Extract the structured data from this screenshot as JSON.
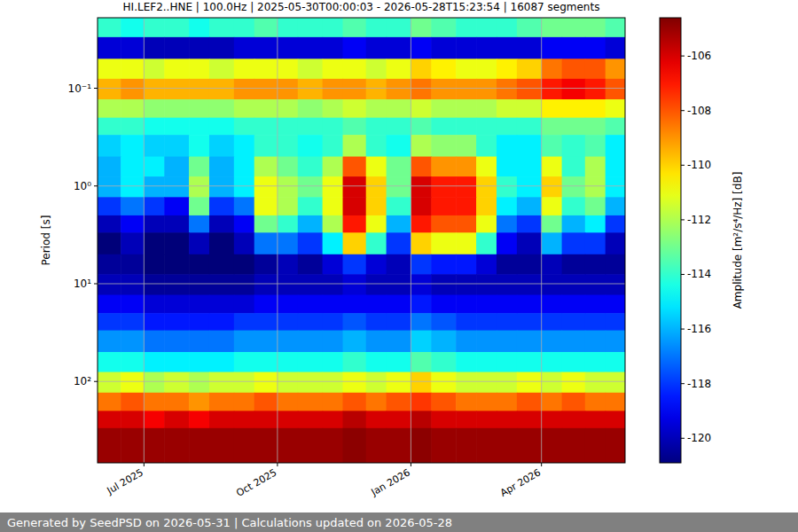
{
  "chart_data": {
    "type": "heatmap",
    "title": "HI.LEF2..HNE | 100.0Hz | 2025-05-30T00:00:03 - 2026-05-28T15:23:54 | 16087 segments",
    "y_label": "Period [s]",
    "footer": "Generated by SeedPSD on 2026-05-31 | Calculations updated on 2026-05-28",
    "log": "y",
    "grid": true,
    "xlim": [
      "2025-05-30T00:00:03",
      "2026-05-28T15:23:54"
    ],
    "xticks": [
      {
        "value": "2025-07-01T00:00:00",
        "label": "Jul 2025"
      },
      {
        "value": "2025-10-01T00:00:00",
        "label": "Oct 2025"
      },
      {
        "value": "2026-01-01T00:00:00",
        "label": "Jan 2026"
      },
      {
        "value": "2026-04-01T00:00:00",
        "label": "Apr 2026"
      }
    ],
    "ylim": [
      0.019,
      680
    ],
    "yticks": [
      {
        "value": 0.1,
        "label": "10⁻¹"
      },
      {
        "value": 1,
        "label": "10⁰"
      },
      {
        "value": 10,
        "label": "10¹"
      },
      {
        "value": 100,
        "label": "10²"
      }
    ],
    "x": [
      "2025-05-30T00:00:03",
      "2025-06-15T00:00:00",
      "2025-07-01T00:00:00",
      "2025-07-15T00:00:00",
      "2025-08-01T00:00:00",
      "2025-08-15T00:00:00",
      "2025-09-01T00:00:00",
      "2025-09-15T00:00:00",
      "2025-10-01T00:00:00",
      "2025-10-15T00:00:00",
      "2025-11-01T00:00:00",
      "2025-11-15T00:00:00",
      "2025-12-01T00:00:00",
      "2025-12-15T00:00:00",
      "2026-01-01T00:00:00",
      "2026-01-15T00:00:00",
      "2026-02-01T00:00:00",
      "2026-02-15T00:00:00",
      "2026-03-01T00:00:00",
      "2026-03-15T00:00:00",
      "2026-04-01T00:00:00",
      "2026-04-15T00:00:00",
      "2026-05-01T00:00:00",
      "2026-05-15T00:00:00",
      "2026-05-28T15:23:54"
    ],
    "y": [
      0.019,
      0.03,
      0.05,
      0.08,
      0.13,
      0.2,
      0.3,
      0.5,
      0.8,
      1.3,
      2,
      3,
      5,
      8,
      13,
      20,
      30,
      50,
      80,
      130,
      200,
      300,
      680
    ],
    "cells": [
      [
        -114,
        -114.5,
        -114,
        -114,
        -114.5,
        -114,
        -114,
        -113.5,
        -114,
        -114,
        -114,
        -113.5,
        -114,
        -114,
        -113,
        -113.5,
        -114,
        -114,
        -114,
        -113.5,
        -113,
        -113,
        -113,
        -113.5
      ],
      [
        -119.5,
        -119.5,
        -120,
        -120,
        -120,
        -120,
        -119.5,
        -119.5,
        -119.5,
        -119.5,
        -119.5,
        -119,
        -119.5,
        -119.5,
        -119,
        -119.5,
        -119.5,
        -119.5,
        -119.5,
        -119.5,
        -119,
        -119,
        -119,
        -119.5
      ],
      [
        -111,
        -111,
        -111.5,
        -111,
        -111,
        -111.5,
        -111,
        -111,
        -111,
        -111.5,
        -111,
        -111,
        -111.5,
        -111,
        -110,
        -110.5,
        -111,
        -111,
        -110.5,
        -110,
        -108.5,
        -108,
        -108,
        -109
      ],
      [
        -109.5,
        -109,
        -109.5,
        -109.5,
        -109.5,
        -109.5,
        -109,
        -109,
        -109,
        -109.5,
        -109,
        -109,
        -109.5,
        -109,
        -108.5,
        -109,
        -109,
        -109,
        -108.5,
        -108,
        -107,
        -106.5,
        -107,
        -108
      ],
      [
        -112,
        -112,
        -112.5,
        -112.5,
        -112.5,
        -112.5,
        -112,
        -112,
        -112,
        -112.5,
        -112,
        -111.5,
        -112,
        -112,
        -111.5,
        -112,
        -112,
        -112,
        -111.5,
        -111.5,
        -110.5,
        -110.5,
        -110.5,
        -111
      ],
      [
        -114,
        -114,
        -114.5,
        -114.5,
        -114.5,
        -114.5,
        -114,
        -114,
        -114,
        -114,
        -114,
        -113.5,
        -114,
        -114,
        -113.5,
        -114,
        -114,
        -114,
        -114,
        -114,
        -113,
        -113,
        -113,
        -113.5
      ],
      [
        -115.5,
        -115,
        -115.5,
        -115.5,
        -114.5,
        -115.5,
        -115,
        -114,
        -114,
        -114.5,
        -114,
        -112,
        -114,
        -114.5,
        -112,
        -112.5,
        -112.5,
        -114,
        -115,
        -115,
        -113.5,
        -114,
        -113.5,
        -115
      ],
      [
        -116,
        -115,
        -115,
        -116,
        -113,
        -116,
        -115,
        -112,
        -113,
        -114,
        -112,
        -108,
        -111,
        -113,
        -108,
        -109,
        -109,
        -111,
        -115,
        -115,
        -111,
        -114,
        -112,
        -115
      ],
      [
        -116,
        -115,
        -116,
        -116,
        -112,
        -116,
        -115,
        -111,
        -112,
        -113,
        -111,
        -106,
        -110,
        -113,
        -106,
        -107,
        -107,
        -110,
        -114,
        -115,
        -110,
        -113,
        -112,
        -115
      ],
      [
        -118,
        -117,
        -118,
        -119,
        -113,
        -118,
        -117,
        -111,
        -112,
        -114,
        -111,
        -106,
        -110,
        -114,
        -106,
        -107,
        -107,
        -110,
        -115,
        -116,
        -111,
        -114,
        -113,
        -116
      ],
      [
        -120,
        -119,
        -120,
        -120,
        -117,
        -120,
        -119,
        -113,
        -114,
        -116,
        -112,
        -107,
        -111,
        -116,
        -107,
        -108,
        -108,
        -111,
        -117,
        -118,
        -113,
        -116,
        -115,
        -118
      ],
      [
        -121,
        -120,
        -121,
        -121,
        -120,
        -121,
        -120,
        -117,
        -117,
        -118,
        -115,
        -110,
        -114,
        -118,
        -110,
        -111,
        -111,
        -114,
        -119,
        -120,
        -116,
        -118,
        -118,
        -120
      ],
      [
        -120.5,
        -120.5,
        -121,
        -121,
        -121,
        -121,
        -121,
        -120.5,
        -120,
        -120.5,
        -119.5,
        -118,
        -119.5,
        -120,
        -118,
        -118.5,
        -118.5,
        -119.5,
        -120.5,
        -120.5,
        -120,
        -120.5,
        -120.5,
        -120.5
      ],
      [
        -120,
        -120,
        -120.5,
        -120.5,
        -120.5,
        -120.5,
        -120.5,
        -120,
        -120,
        -120,
        -120,
        -119.5,
        -120,
        -120,
        -119.5,
        -120,
        -120,
        -120,
        -120,
        -120,
        -120,
        -120,
        -120,
        -120
      ],
      [
        -119,
        -119,
        -119.5,
        -119.5,
        -119.5,
        -119.5,
        -119.5,
        -119,
        -119,
        -119,
        -119,
        -119,
        -119,
        -119,
        -118.5,
        -119,
        -119,
        -119,
        -119,
        -119,
        -119,
        -119,
        -119,
        -119
      ],
      [
        -118,
        -118,
        -118.5,
        -118.5,
        -118.5,
        -118.5,
        -118,
        -118,
        -118,
        -118,
        -118,
        -117.5,
        -118,
        -118,
        -117,
        -117.5,
        -118,
        -118,
        -118,
        -118,
        -118,
        -118,
        -118,
        -118
      ],
      [
        -116.5,
        -116.5,
        -117,
        -117,
        -117,
        -117,
        -116.5,
        -116.5,
        -116.5,
        -116.5,
        -116.5,
        -116,
        -116.5,
        -116.5,
        -115.5,
        -116,
        -116.5,
        -116.5,
        -116.5,
        -116.5,
        -116.5,
        -116.5,
        -116.5,
        -116.5
      ],
      [
        -114.5,
        -114.5,
        -115,
        -115,
        -115,
        -115,
        -114.5,
        -114.5,
        -114.5,
        -114.5,
        -114.5,
        -114,
        -114.5,
        -114.5,
        -113.5,
        -114,
        -114.5,
        -114.5,
        -114.5,
        -114.5,
        -114.5,
        -114.5,
        -114.5,
        -114.5
      ],
      [
        -111.5,
        -111,
        -112,
        -111.5,
        -112,
        -111.5,
        -111.5,
        -111,
        -111.5,
        -111.5,
        -111.5,
        -111,
        -111.5,
        -111,
        -110,
        -111,
        -111.5,
        -111.5,
        -111.5,
        -111,
        -111.5,
        -111,
        -111.5,
        -111.5
      ],
      [
        -108.5,
        -108,
        -108.5,
        -108.5,
        -109,
        -108.5,
        -108.5,
        -108,
        -108.5,
        -108.5,
        -108.5,
        -108,
        -108.5,
        -108,
        -107.5,
        -108,
        -108.5,
        -108.5,
        -108.5,
        -108,
        -108.5,
        -108,
        -108.5,
        -108.5
      ],
      [
        -106,
        -106,
        -106.5,
        -106,
        -106.5,
        -106,
        -106,
        -106,
        -106,
        -106,
        -106,
        -105.5,
        -106,
        -106,
        -105.5,
        -106,
        -106,
        -106,
        -106,
        -106,
        -106,
        -106,
        -106,
        -106
      ],
      [
        -105,
        -105,
        -105,
        -105,
        -105,
        -105,
        -105,
        -105,
        -105,
        -105,
        -105,
        -104.8,
        -105,
        -105,
        -104.8,
        -105,
        -105,
        -105,
        -105,
        -105,
        -105,
        -105,
        -105,
        -105
      ]
    ],
    "colorbar": {
      "label": "Amplitude [m²/s⁴/Hz] [dB]",
      "range": [
        -120.9,
        -104.6
      ],
      "ticks": [
        -120,
        -118,
        -116,
        -114,
        -112,
        -110,
        -108,
        -106
      ]
    }
  }
}
